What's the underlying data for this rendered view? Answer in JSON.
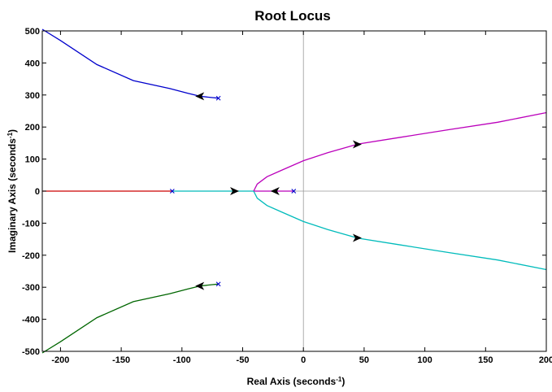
{
  "chart_data": {
    "type": "line",
    "title": "Root Locus",
    "xlabel": "Real Axis (seconds",
    "ylabel": "Imaginary Axis (seconds",
    "unit_superscript": "-1",
    "unit_close": ")",
    "xlim": [
      -215,
      200
    ],
    "ylim": [
      -500,
      500
    ],
    "xticks": [
      -200,
      -150,
      -100,
      -50,
      0,
      50,
      100,
      150,
      200
    ],
    "yticks": [
      500,
      400,
      300,
      200,
      100,
      0,
      -100,
      -200,
      -300,
      -400,
      -500
    ],
    "grid": false,
    "crosshair_at_origin": true,
    "series": [
      {
        "color": "#0000cc",
        "points": [
          [
            -70,
            290
          ],
          [
            -75,
            292
          ],
          [
            -85,
            296
          ],
          [
            -95,
            305
          ],
          [
            -110,
            320
          ],
          [
            -140,
            345
          ],
          [
            -170,
            395
          ],
          [
            -200,
            470
          ],
          [
            -215,
            505
          ]
        ]
      },
      {
        "color": "#006600",
        "points": [
          [
            -70,
            -290
          ],
          [
            -75,
            -292
          ],
          [
            -85,
            -296
          ],
          [
            -95,
            -305
          ],
          [
            -110,
            -320
          ],
          [
            -140,
            -345
          ],
          [
            -170,
            -395
          ],
          [
            -200,
            -470
          ],
          [
            -215,
            -505
          ]
        ]
      },
      {
        "color": "#cc0000",
        "points": [
          [
            -108,
            0
          ],
          [
            -215,
            0
          ]
        ]
      },
      {
        "color": "#00bbbb",
        "points": [
          [
            -108,
            0
          ],
          [
            -41,
            0
          ]
        ]
      },
      {
        "color": "#bb00bb",
        "points": [
          [
            -8,
            0
          ],
          [
            -41,
            0
          ]
        ]
      },
      {
        "color": "#bb00bb",
        "points": [
          [
            -41,
            0
          ],
          [
            -38,
            22
          ],
          [
            -30,
            45
          ],
          [
            -18,
            65
          ],
          [
            0,
            95
          ],
          [
            20,
            120
          ],
          [
            45,
            147
          ],
          [
            80,
            168
          ],
          [
            120,
            192
          ],
          [
            160,
            215
          ],
          [
            200,
            245
          ]
        ]
      },
      {
        "color": "#00bbbb",
        "points": [
          [
            -41,
            0
          ],
          [
            -38,
            -22
          ],
          [
            -30,
            -45
          ],
          [
            -18,
            -65
          ],
          [
            0,
            -95
          ],
          [
            20,
            -120
          ],
          [
            45,
            -147
          ],
          [
            80,
            -168
          ],
          [
            120,
            -192
          ],
          [
            160,
            -215
          ],
          [
            200,
            -245
          ]
        ]
      }
    ],
    "poles": [
      {
        "x": -70,
        "y": 290,
        "color": "#0000cc"
      },
      {
        "x": -70,
        "y": -290,
        "color": "#0000cc"
      },
      {
        "x": -108,
        "y": 0,
        "color": "#0000cc"
      },
      {
        "x": -8,
        "y": 0,
        "color": "#0000cc"
      }
    ],
    "arrows": [
      {
        "x": -85,
        "y": 296,
        "dir": "left"
      },
      {
        "x": -85,
        "y": -296,
        "dir": "left"
      },
      {
        "x": -57,
        "y": 0,
        "dir": "right"
      },
      {
        "x": -23,
        "y": 0,
        "dir": "left"
      },
      {
        "x": 44,
        "y": 146,
        "dir": "right"
      },
      {
        "x": 44,
        "y": -146,
        "dir": "right"
      }
    ]
  }
}
